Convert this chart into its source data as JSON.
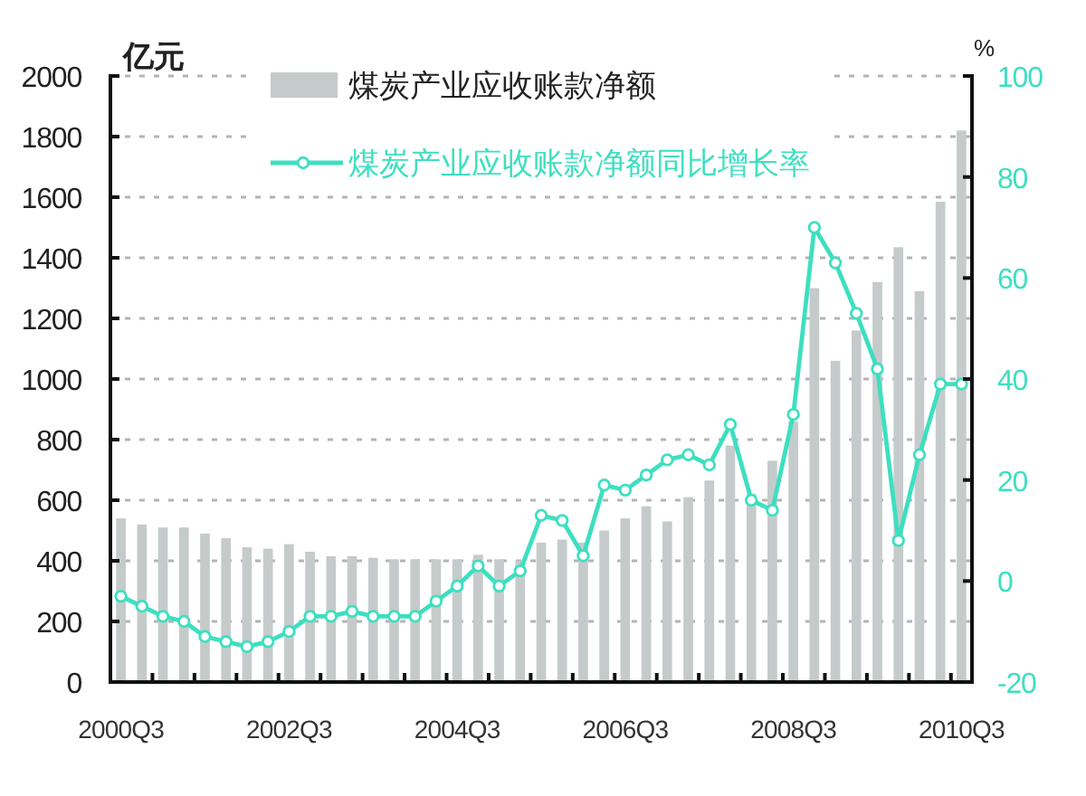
{
  "chart_data": {
    "type": "bar",
    "categories": [
      "2000Q3",
      null,
      null,
      null,
      null,
      null,
      null,
      null,
      "2002Q3",
      null,
      null,
      null,
      null,
      null,
      null,
      null,
      "2004Q3",
      null,
      null,
      null,
      null,
      null,
      null,
      null,
      "2006Q3",
      null,
      null,
      null,
      null,
      null,
      null,
      null,
      "2008Q3",
      null,
      null,
      null,
      null,
      null,
      null,
      null,
      "2010Q3"
    ],
    "series": [
      {
        "name": "煤炭产业应收账款净额",
        "color": "#c5cbca",
        "values": [
          540,
          520,
          510,
          510,
          490,
          475,
          445,
          440,
          455,
          430,
          415,
          415,
          410,
          405,
          405,
          405,
          405,
          420,
          405,
          400,
          460,
          470,
          460,
          500,
          540,
          580,
          530,
          610,
          665,
          780,
          620,
          730,
          860,
          1300,
          1060,
          1160,
          1320,
          1435,
          1290,
          1585,
          1820
        ]
      },
      {
        "name": "煤炭产业应收账款净额同比增长率",
        "type": "line",
        "axis": "y2",
        "marker": "circle",
        "color": "#3ddfc0",
        "values": [
          -3,
          -5,
          -7,
          -8,
          -11,
          -12,
          -13,
          -12,
          -10,
          -7,
          -7,
          -6,
          -7,
          -7,
          -7,
          -4,
          -1,
          3,
          -1,
          2,
          13,
          12,
          5,
          19,
          18,
          21,
          24,
          25,
          23,
          31,
          16,
          14,
          33,
          70,
          63,
          53,
          42,
          8,
          25,
          39,
          39
        ]
      }
    ],
    "ylabel": "亿元",
    "y2label": "%",
    "ylim": [
      0,
      2000
    ],
    "yticks": [
      0,
      200,
      400,
      600,
      800,
      1000,
      1200,
      1400,
      1600,
      1800,
      2000
    ],
    "y2lim": [
      -20,
      100
    ],
    "y2ticks": [
      -20,
      0,
      20,
      40,
      60,
      80,
      100
    ],
    "grid": "y",
    "legend": "top"
  }
}
